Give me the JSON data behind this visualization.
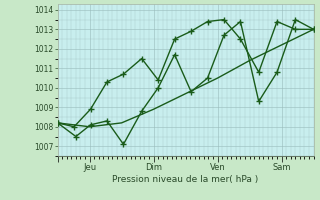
{
  "xlabel": "Pression niveau de la mer( hPa )",
  "outer_bg": "#c8e8c8",
  "plot_bg": "#c8eeee",
  "grid_color": "#99bbbb",
  "line_color": "#1a5c1a",
  "marker_color": "#1a5c1a",
  "ylim": [
    1006.5,
    1014.3
  ],
  "yticks": [
    1007,
    1008,
    1009,
    1010,
    1011,
    1012,
    1013,
    1014
  ],
  "xtick_positions": [
    0.0,
    0.875,
    2.625,
    4.375,
    6.125
  ],
  "xtick_labels": [
    "",
    "Jeu",
    "Dim",
    "Ven",
    "Sam"
  ],
  "xlim": [
    0.0,
    7.0
  ],
  "series": [
    {
      "x": [
        0.0,
        0.5,
        0.9,
        1.35,
        1.8,
        2.3,
        2.75,
        3.2,
        3.65,
        4.1,
        4.55,
        5.0,
        5.5,
        6.0,
        6.5,
        7.0
      ],
      "y": [
        1008.2,
        1007.5,
        1008.1,
        1008.3,
        1007.1,
        1008.8,
        1010.0,
        1011.7,
        1009.8,
        1010.5,
        1012.7,
        1013.4,
        1009.3,
        1010.8,
        1013.5,
        1013.0
      ],
      "lw": 1.0,
      "marker": "+"
    },
    {
      "x": [
        0.0,
        0.45,
        0.9,
        1.35,
        1.8,
        2.3,
        2.75,
        3.2,
        3.65,
        4.1,
        4.55,
        5.0,
        5.5,
        6.0,
        6.5,
        7.0
      ],
      "y": [
        1008.2,
        1008.0,
        1008.9,
        1010.3,
        1010.7,
        1011.5,
        1010.4,
        1012.5,
        1012.9,
        1013.4,
        1013.5,
        1012.5,
        1010.8,
        1013.4,
        1013.0,
        1013.0
      ],
      "lw": 1.0,
      "marker": "+"
    },
    {
      "x": [
        0.0,
        0.875,
        1.75,
        2.625,
        3.5,
        4.375,
        5.25,
        6.125,
        7.0
      ],
      "y": [
        1008.2,
        1008.0,
        1008.2,
        1008.9,
        1009.7,
        1010.5,
        1011.4,
        1012.2,
        1013.0
      ],
      "lw": 1.0,
      "marker": null
    }
  ]
}
